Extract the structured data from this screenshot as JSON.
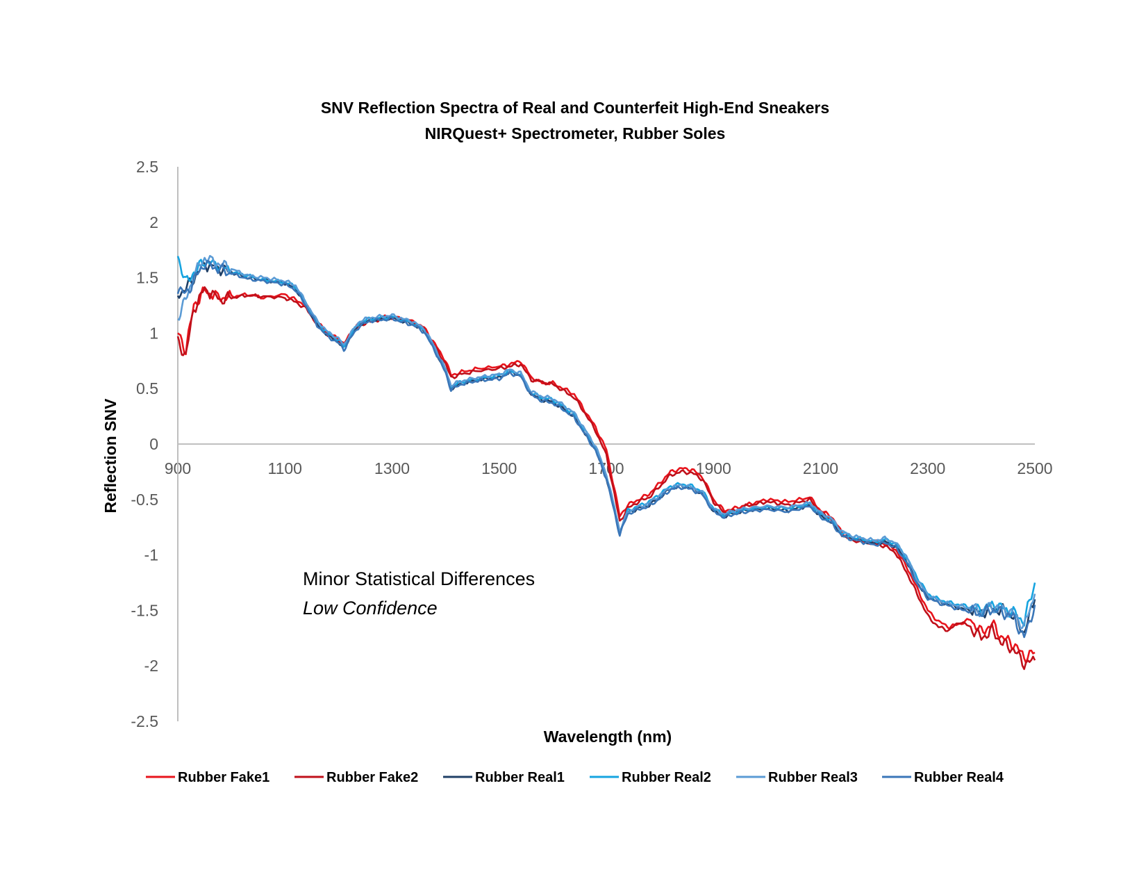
{
  "chart_data": {
    "type": "line",
    "title": "SNV Reflection Spectra of Real and Counterfeit High-End Sneakers",
    "subtitle": "NIRQuest+ Spectrometer, Rubber Soles",
    "xlabel": "Wavelength (nm)",
    "ylabel": "Reflection SNV",
    "xlim": [
      900,
      2500
    ],
    "ylim": [
      -2.5,
      2.5
    ],
    "x_ticks": [
      "900",
      "1100",
      "1300",
      "1500",
      "1700",
      "1900",
      "2100",
      "2300",
      "2500"
    ],
    "y_ticks": [
      "2.5",
      "2",
      "1.5",
      "1",
      "0.5",
      "0",
      "-0.5",
      "-1",
      "-1.5",
      "-2",
      "-2.5"
    ],
    "annotations": [
      "Minor Statistical Differences",
      "Low Confidence"
    ],
    "legend_position": "bottom",
    "x": [
      900,
      915,
      930,
      950,
      980,
      1000,
      1030,
      1060,
      1100,
      1120,
      1140,
      1160,
      1180,
      1200,
      1210,
      1220,
      1240,
      1260,
      1280,
      1300,
      1320,
      1340,
      1360,
      1380,
      1400,
      1410,
      1430,
      1460,
      1500,
      1520,
      1540,
      1560,
      1580,
      1600,
      1620,
      1640,
      1660,
      1680,
      1700,
      1715,
      1725,
      1740,
      1760,
      1780,
      1800,
      1820,
      1840,
      1860,
      1880,
      1900,
      1920,
      1940,
      1960,
      2000,
      2040,
      2080,
      2100,
      2120,
      2140,
      2160,
      2200,
      2220,
      2240,
      2260,
      2280,
      2300,
      2320,
      2340,
      2360,
      2380,
      2400,
      2420,
      2440,
      2460,
      2480,
      2500
    ],
    "series": [
      {
        "name": "Rubber Fake1",
        "color": "#e8141c",
        "values": [
          1.0,
          0.85,
          1.25,
          1.38,
          1.32,
          1.33,
          1.35,
          1.32,
          1.35,
          1.3,
          1.25,
          1.1,
          1.0,
          0.95,
          0.9,
          0.98,
          1.1,
          1.12,
          1.14,
          1.15,
          1.12,
          1.1,
          1.05,
          0.9,
          0.75,
          0.62,
          0.65,
          0.68,
          0.7,
          0.72,
          0.75,
          0.6,
          0.55,
          0.55,
          0.5,
          0.45,
          0.3,
          0.15,
          -0.05,
          -0.4,
          -0.65,
          -0.55,
          -0.5,
          -0.45,
          -0.35,
          -0.25,
          -0.22,
          -0.23,
          -0.3,
          -0.5,
          -0.6,
          -0.58,
          -0.55,
          -0.5,
          -0.52,
          -0.48,
          -0.6,
          -0.65,
          -0.8,
          -0.85,
          -0.88,
          -0.9,
          -0.95,
          -1.1,
          -1.3,
          -1.5,
          -1.6,
          -1.65,
          -1.62,
          -1.58,
          -1.7,
          -1.62,
          -1.75,
          -1.8,
          -1.92,
          -1.88
        ]
      },
      {
        "name": "Rubber Fake2",
        "color": "#c0101a",
        "values": [
          0.92,
          0.8,
          1.22,
          1.4,
          1.3,
          1.32,
          1.34,
          1.33,
          1.32,
          1.28,
          1.22,
          1.08,
          0.98,
          0.93,
          0.88,
          0.96,
          1.08,
          1.1,
          1.13,
          1.14,
          1.12,
          1.09,
          1.03,
          0.88,
          0.72,
          0.6,
          0.63,
          0.66,
          0.68,
          0.7,
          0.72,
          0.58,
          0.56,
          0.54,
          0.48,
          0.42,
          0.28,
          0.12,
          -0.1,
          -0.45,
          -0.7,
          -0.58,
          -0.52,
          -0.48,
          -0.38,
          -0.28,
          -0.25,
          -0.26,
          -0.32,
          -0.52,
          -0.62,
          -0.6,
          -0.56,
          -0.52,
          -0.55,
          -0.5,
          -0.62,
          -0.68,
          -0.82,
          -0.87,
          -0.9,
          -0.92,
          -0.98,
          -1.15,
          -1.35,
          -1.55,
          -1.65,
          -1.68,
          -1.6,
          -1.65,
          -1.75,
          -1.68,
          -1.8,
          -1.85,
          -1.98,
          -1.95
        ]
      },
      {
        "name": "Rubber Real1",
        "color": "#1f3f66",
        "values": [
          1.35,
          1.4,
          1.5,
          1.62,
          1.58,
          1.55,
          1.5,
          1.48,
          1.45,
          1.4,
          1.25,
          1.08,
          0.98,
          0.92,
          0.86,
          0.95,
          1.08,
          1.12,
          1.13,
          1.14,
          1.11,
          1.08,
          1.02,
          0.85,
          0.65,
          0.5,
          0.55,
          0.58,
          0.6,
          0.65,
          0.62,
          0.45,
          0.4,
          0.38,
          0.32,
          0.25,
          0.1,
          -0.05,
          -0.3,
          -0.6,
          -0.78,
          -0.62,
          -0.58,
          -0.55,
          -0.48,
          -0.4,
          -0.38,
          -0.4,
          -0.45,
          -0.6,
          -0.65,
          -0.62,
          -0.6,
          -0.58,
          -0.6,
          -0.55,
          -0.65,
          -0.7,
          -0.82,
          -0.85,
          -0.9,
          -0.88,
          -0.92,
          -1.05,
          -1.25,
          -1.38,
          -1.42,
          -1.45,
          -1.48,
          -1.5,
          -1.52,
          -1.48,
          -1.5,
          -1.55,
          -1.7,
          -1.4
        ]
      },
      {
        "name": "Rubber Real2",
        "color": "#16a4e0",
        "values": [
          1.7,
          1.45,
          1.55,
          1.65,
          1.6,
          1.55,
          1.52,
          1.48,
          1.46,
          1.42,
          1.26,
          1.1,
          1.0,
          0.94,
          0.88,
          0.97,
          1.1,
          1.13,
          1.14,
          1.15,
          1.12,
          1.09,
          1.03,
          0.86,
          0.66,
          0.52,
          0.56,
          0.59,
          0.62,
          0.66,
          0.63,
          0.46,
          0.42,
          0.4,
          0.34,
          0.27,
          0.12,
          -0.03,
          -0.28,
          -0.58,
          -0.8,
          -0.6,
          -0.56,
          -0.52,
          -0.45,
          -0.38,
          -0.36,
          -0.38,
          -0.43,
          -0.58,
          -0.64,
          -0.61,
          -0.59,
          -0.57,
          -0.58,
          -0.54,
          -0.63,
          -0.68,
          -0.8,
          -0.84,
          -0.88,
          -0.86,
          -0.9,
          -1.02,
          -1.2,
          -1.35,
          -1.4,
          -1.43,
          -1.45,
          -1.47,
          -1.5,
          -1.45,
          -1.48,
          -1.52,
          -1.6,
          -1.25
        ]
      },
      {
        "name": "Rubber Real3",
        "color": "#5b9bd5",
        "values": [
          1.15,
          1.3,
          1.52,
          1.68,
          1.62,
          1.58,
          1.52,
          1.5,
          1.47,
          1.43,
          1.27,
          1.11,
          1.01,
          0.95,
          0.89,
          0.98,
          1.11,
          1.14,
          1.15,
          1.16,
          1.13,
          1.1,
          1.04,
          0.87,
          0.67,
          0.53,
          0.57,
          0.6,
          0.63,
          0.67,
          0.64,
          0.47,
          0.43,
          0.41,
          0.35,
          0.28,
          0.13,
          -0.02,
          -0.27,
          -0.57,
          -0.79,
          -0.61,
          -0.57,
          -0.53,
          -0.46,
          -0.39,
          -0.37,
          -0.39,
          -0.44,
          -0.59,
          -0.63,
          -0.6,
          -0.58,
          -0.56,
          -0.57,
          -0.53,
          -0.62,
          -0.67,
          -0.79,
          -0.83,
          -0.87,
          -0.85,
          -0.89,
          -1.01,
          -1.22,
          -1.36,
          -1.41,
          -1.44,
          -1.46,
          -1.48,
          -1.51,
          -1.46,
          -1.49,
          -1.53,
          -1.65,
          -1.35
        ]
      },
      {
        "name": "Rubber Real4",
        "color": "#3a76b8",
        "values": [
          1.4,
          1.35,
          1.48,
          1.63,
          1.57,
          1.54,
          1.49,
          1.47,
          1.44,
          1.39,
          1.24,
          1.07,
          0.97,
          0.91,
          0.85,
          0.94,
          1.07,
          1.11,
          1.12,
          1.13,
          1.1,
          1.07,
          1.01,
          0.84,
          0.64,
          0.49,
          0.54,
          0.57,
          0.59,
          0.64,
          0.61,
          0.44,
          0.39,
          0.37,
          0.31,
          0.24,
          0.09,
          -0.06,
          -0.31,
          -0.61,
          -0.82,
          -0.63,
          -0.59,
          -0.56,
          -0.49,
          -0.41,
          -0.39,
          -0.41,
          -0.46,
          -0.61,
          -0.66,
          -0.63,
          -0.61,
          -0.59,
          -0.61,
          -0.56,
          -0.66,
          -0.71,
          -0.83,
          -0.86,
          -0.91,
          -0.89,
          -0.93,
          -1.06,
          -1.26,
          -1.39,
          -1.43,
          -1.46,
          -1.49,
          -1.51,
          -1.53,
          -1.49,
          -1.52,
          -1.56,
          -1.75,
          -1.45
        ]
      }
    ]
  }
}
